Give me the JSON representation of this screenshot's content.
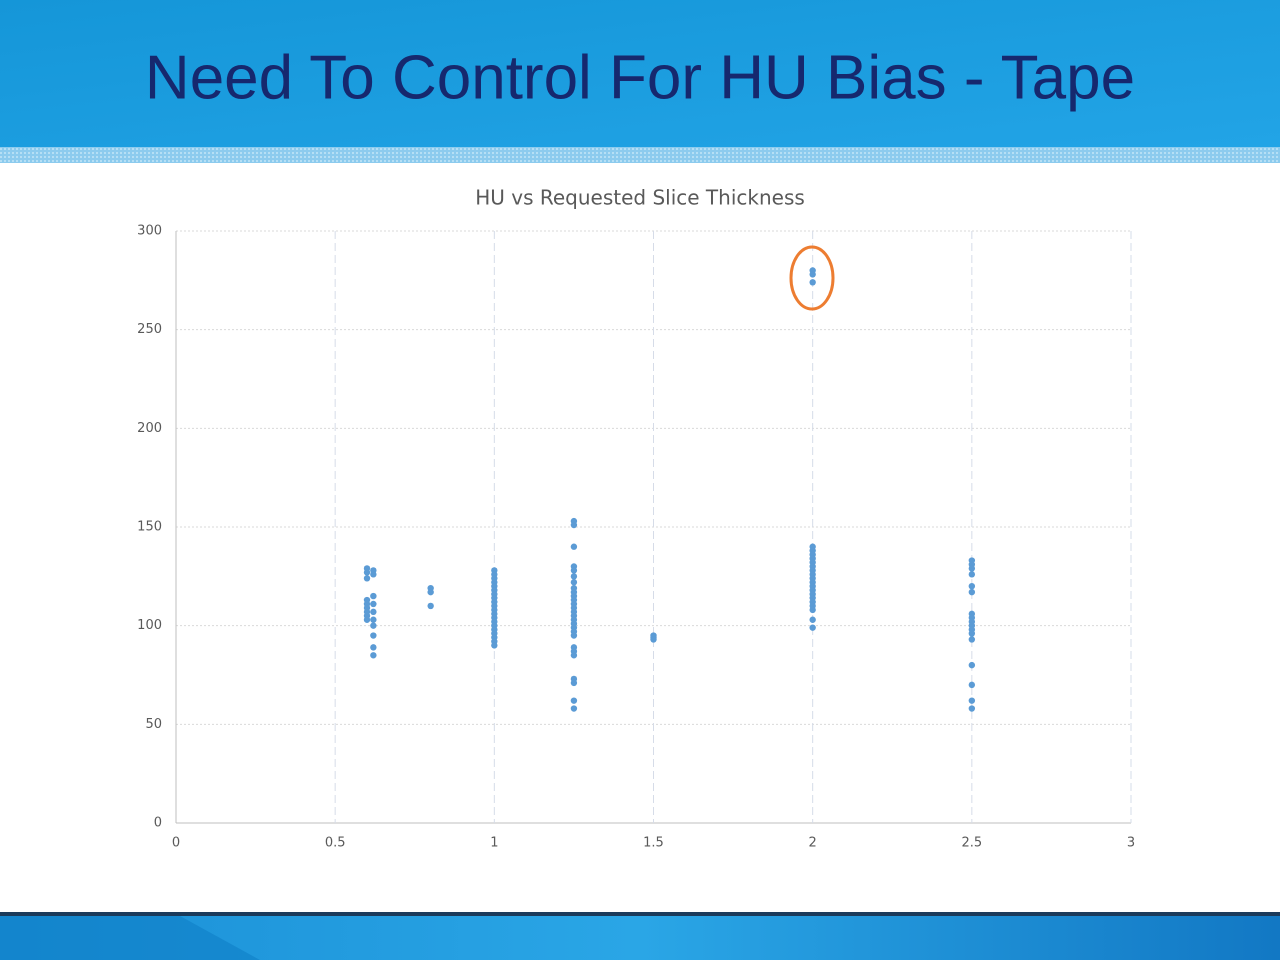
{
  "slide_title": "Need To Control For HU Bias - Tape",
  "chart_data": {
    "type": "scatter",
    "title": "HU vs Requested Slice Thickness",
    "color": "#5b9bd5",
    "x": [
      0.6,
      0.6,
      0.6,
      0.6,
      0.6,
      0.6,
      0.6,
      0.6,
      0.6,
      0.62,
      0.62,
      0.62,
      0.62,
      0.62,
      0.62,
      0.62,
      0.62,
      0.62,
      0.62,
      0.8,
      0.8,
      0.8,
      1,
      1,
      1,
      1,
      1,
      1,
      1,
      1,
      1,
      1,
      1,
      1,
      1,
      1,
      1,
      1,
      1,
      1,
      1,
      1,
      1.25,
      1.25,
      1.25,
      1.25,
      1.25,
      1.25,
      1.25,
      1.25,
      1.25,
      1.25,
      1.25,
      1.25,
      1.25,
      1.25,
      1.25,
      1.25,
      1.25,
      1.25,
      1.25,
      1.25,
      1.25,
      1.25,
      1.25,
      1.25,
      1.25,
      1.25,
      1.25,
      1.5,
      1.5,
      1.5,
      2,
      2,
      2,
      2,
      2,
      2,
      2,
      2,
      2,
      2,
      2,
      2,
      2,
      2,
      2,
      2,
      2,
      2,
      2,
      2,
      2,
      2,
      2.5,
      2.5,
      2.5,
      2.5,
      2.5,
      2.5,
      2.5,
      2.5,
      2.5,
      2.5,
      2.5,
      2.5,
      2.5,
      2.5,
      2.5,
      2.5,
      2.5
    ],
    "values": [
      129,
      127,
      124,
      113,
      111,
      109,
      107,
      105,
      103,
      128,
      126,
      115,
      111,
      107,
      103,
      100,
      95,
      89,
      85,
      119,
      117,
      110,
      128,
      126,
      124,
      122,
      120,
      118,
      116,
      114,
      112,
      110,
      108,
      106,
      104,
      102,
      100,
      98,
      96,
      94,
      92,
      90,
      153,
      151,
      140,
      130,
      128,
      125,
      122,
      119,
      117,
      115,
      113,
      111,
      109,
      107,
      105,
      103,
      101,
      99,
      97,
      95,
      89,
      87,
      85,
      73,
      71,
      62,
      58,
      95,
      94,
      93,
      280,
      278,
      274,
      140,
      138,
      136,
      134,
      132,
      130,
      128,
      126,
      124,
      122,
      120,
      118,
      116,
      114,
      112,
      110,
      108,
      103,
      99,
      133,
      131,
      129,
      126,
      120,
      117,
      106,
      104,
      102,
      100,
      98,
      96,
      93,
      80,
      70,
      62,
      58
    ],
    "xlim": [
      0,
      3
    ],
    "xticks": [
      0,
      0.5,
      1,
      1.5,
      2,
      2.5,
      3
    ],
    "ylim": [
      0,
      300
    ],
    "yticks": [
      0,
      50,
      100,
      150,
      200,
      250,
      300
    ],
    "grid": true
  }
}
